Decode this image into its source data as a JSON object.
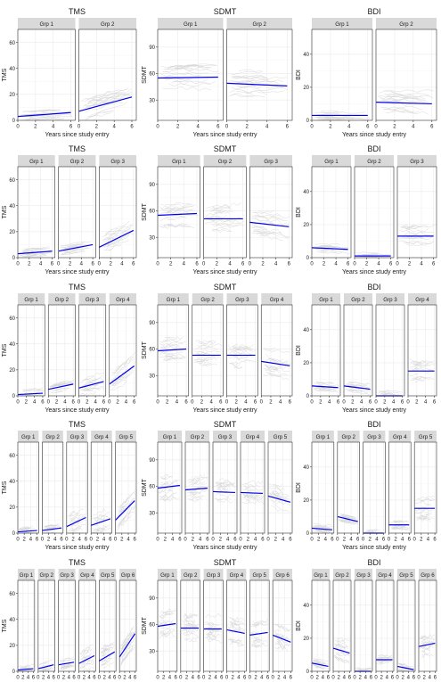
{
  "colors": {
    "strip_bg": "#d9d9d9",
    "trajectory": "#d0d0d0",
    "trend": "#0000ee",
    "grid": "#ebebeb",
    "border": "#333333"
  },
  "chart_data": [
    {
      "type": "line",
      "title": "TMS",
      "xlabel": "Years since study entry",
      "ylabel": "TMS",
      "ylim": [
        0,
        70
      ],
      "yticks": [
        0,
        20,
        40,
        60
      ],
      "xticks": [
        0,
        2,
        4,
        6
      ],
      "xlim": [
        0,
        6.5
      ],
      "grid": true,
      "show_xlabel": true,
      "groups": [
        {
          "name": "Grp 1",
          "trend": [
            [
              0,
              3
            ],
            [
              6,
              6
            ]
          ]
        },
        {
          "name": "Grp 2",
          "trend": [
            [
              0,
              7
            ],
            [
              6,
              18
            ]
          ]
        }
      ]
    },
    {
      "type": "line",
      "title": "SDMT",
      "xlabel": "Years since study entry",
      "ylabel": "SDMT",
      "ylim": [
        7,
        110
      ],
      "yticks": [
        30,
        60,
        90
      ],
      "xticks": [
        0,
        2,
        4,
        6
      ],
      "xlim": [
        0,
        6.5
      ],
      "grid": true,
      "show_xlabel": true,
      "groups": [
        {
          "name": "Grp 1",
          "trend": [
            [
              0,
              55
            ],
            [
              6,
              56
            ]
          ]
        },
        {
          "name": "Grp 2",
          "trend": [
            [
              0,
              49
            ],
            [
              6,
              46
            ]
          ]
        }
      ]
    },
    {
      "type": "line",
      "title": "BDI",
      "xlabel": "Years since study entry",
      "ylabel": "BDI",
      "ylim": [
        0,
        55
      ],
      "yticks": [
        0,
        20,
        40
      ],
      "xticks": [
        0,
        2,
        4,
        6
      ],
      "xlim": [
        0,
        6.5
      ],
      "grid": true,
      "show_xlabel": true,
      "groups": [
        {
          "name": "Grp 1",
          "trend": [
            [
              0,
              3
            ],
            [
              6,
              3
            ]
          ]
        },
        {
          "name": "Grp 2",
          "trend": [
            [
              0,
              11
            ],
            [
              6,
              10
            ]
          ]
        }
      ]
    },
    {
      "type": "line",
      "title": "TMS",
      "xlabel": "Years since study entry",
      "ylabel": "TMS",
      "ylim": [
        0,
        70
      ],
      "yticks": [
        0,
        20,
        40,
        60
      ],
      "xticks": [
        0,
        2,
        4,
        6
      ],
      "xlim": [
        0,
        6.5
      ],
      "grid": true,
      "show_xlabel": true,
      "groups": [
        {
          "name": "Grp 1",
          "trend": [
            [
              0,
              3
            ],
            [
              6,
              5
            ]
          ]
        },
        {
          "name": "Grp 2",
          "trend": [
            [
              0,
              5
            ],
            [
              6,
              10
            ]
          ]
        },
        {
          "name": "Grp 3",
          "trend": [
            [
              0,
              8
            ],
            [
              6,
              21
            ]
          ]
        }
      ]
    },
    {
      "type": "line",
      "title": "SDMT",
      "xlabel": "Years since study entry",
      "ylabel": "SDMT",
      "ylim": [
        7,
        110
      ],
      "yticks": [
        30,
        60,
        90
      ],
      "xticks": [
        0,
        2,
        4,
        6
      ],
      "xlim": [
        0,
        6.5
      ],
      "grid": true,
      "show_xlabel": true,
      "groups": [
        {
          "name": "Grp 1",
          "trend": [
            [
              0,
              55
            ],
            [
              6,
              57
            ]
          ]
        },
        {
          "name": "Grp 2",
          "trend": [
            [
              0,
              51
            ],
            [
              6,
              51
            ]
          ]
        },
        {
          "name": "Grp 3",
          "trend": [
            [
              0,
              47
            ],
            [
              6,
              42
            ]
          ]
        }
      ]
    },
    {
      "type": "line",
      "title": "BDI",
      "xlabel": "Years since study entry",
      "ylabel": "BDI",
      "ylim": [
        0,
        55
      ],
      "yticks": [
        0,
        20,
        40
      ],
      "xticks": [
        0,
        2,
        4,
        6
      ],
      "xlim": [
        0,
        6.5
      ],
      "grid": true,
      "show_xlabel": true,
      "groups": [
        {
          "name": "Grp 1",
          "trend": [
            [
              0,
              6
            ],
            [
              6,
              5
            ]
          ]
        },
        {
          "name": "Grp 2",
          "trend": [
            [
              0,
              1
            ],
            [
              6,
              1
            ]
          ]
        },
        {
          "name": "Grp 3",
          "trend": [
            [
              0,
              13
            ],
            [
              6,
              13
            ]
          ]
        }
      ]
    },
    {
      "type": "line",
      "title": "TMS",
      "xlabel": "Years since study entry",
      "ylabel": "TMS",
      "ylim": [
        0,
        70
      ],
      "yticks": [
        0,
        20,
        40,
        60
      ],
      "xticks": [
        0,
        2,
        4,
        6
      ],
      "xlim": [
        0,
        6.5
      ],
      "grid": true,
      "show_xlabel": true,
      "groups": [
        {
          "name": "Grp 1",
          "trend": [
            [
              0,
              1
            ],
            [
              6,
              2
            ]
          ]
        },
        {
          "name": "Grp 2",
          "trend": [
            [
              0,
              5
            ],
            [
              6,
              9
            ]
          ]
        },
        {
          "name": "Grp 3",
          "trend": [
            [
              0,
              6
            ],
            [
              6,
              11
            ]
          ]
        },
        {
          "name": "Grp 4",
          "trend": [
            [
              0,
              9
            ],
            [
              6,
              23
            ]
          ]
        }
      ]
    },
    {
      "type": "line",
      "title": "SDMT",
      "xlabel": "Years since study entry",
      "ylabel": "SDMT",
      "ylim": [
        7,
        110
      ],
      "yticks": [
        30,
        60,
        90
      ],
      "xticks": [
        0,
        2,
        4,
        6
      ],
      "xlim": [
        0,
        6.5
      ],
      "grid": true,
      "show_xlabel": true,
      "groups": [
        {
          "name": "Grp 1",
          "trend": [
            [
              0,
              58
            ],
            [
              6,
              60
            ]
          ]
        },
        {
          "name": "Grp 2",
          "trend": [
            [
              0,
              53
            ],
            [
              6,
              53
            ]
          ]
        },
        {
          "name": "Grp 3",
          "trend": [
            [
              0,
              53
            ],
            [
              6,
              53
            ]
          ]
        },
        {
          "name": "Grp 4",
          "trend": [
            [
              0,
              46
            ],
            [
              6,
              41
            ]
          ]
        }
      ]
    },
    {
      "type": "line",
      "title": "BDI",
      "xlabel": "Years since study entry",
      "ylabel": "BDI",
      "ylim": [
        0,
        55
      ],
      "yticks": [
        0,
        20,
        40
      ],
      "xticks": [
        0,
        2,
        4,
        6
      ],
      "xlim": [
        0,
        6.5
      ],
      "grid": true,
      "show_xlabel": true,
      "groups": [
        {
          "name": "Grp 1",
          "trend": [
            [
              0,
              6
            ],
            [
              6,
              5
            ]
          ]
        },
        {
          "name": "Grp 2",
          "trend": [
            [
              0,
              6
            ],
            [
              6,
              4
            ]
          ]
        },
        {
          "name": "Grp 3",
          "trend": [
            [
              0,
              0
            ],
            [
              6,
              0
            ]
          ]
        },
        {
          "name": "Grp 4",
          "trend": [
            [
              0,
              15
            ],
            [
              6,
              15
            ]
          ]
        }
      ]
    },
    {
      "type": "line",
      "title": "TMS",
      "xlabel": "Years since study entry",
      "ylabel": "TMS",
      "ylim": [
        0,
        70
      ],
      "yticks": [
        0,
        20,
        40,
        60
      ],
      "xticks": [
        0,
        2,
        4,
        6
      ],
      "xlim": [
        0,
        6.5
      ],
      "grid": true,
      "show_xlabel": true,
      "groups": [
        {
          "name": "Grp 1",
          "trend": [
            [
              0,
              1
            ],
            [
              6,
              2
            ]
          ]
        },
        {
          "name": "Grp 2",
          "trend": [
            [
              0,
              2
            ],
            [
              6,
              4
            ]
          ]
        },
        {
          "name": "Grp 3",
          "trend": [
            [
              0,
              5
            ],
            [
              6,
              12
            ]
          ]
        },
        {
          "name": "Grp 4",
          "trend": [
            [
              0,
              6
            ],
            [
              6,
              11
            ]
          ]
        },
        {
          "name": "Grp 5",
          "trend": [
            [
              0,
              10
            ],
            [
              6,
              25
            ]
          ]
        }
      ]
    },
    {
      "type": "line",
      "title": "SDMT",
      "xlabel": "Years since study entry",
      "ylabel": "SDMT",
      "ylim": [
        7,
        110
      ],
      "yticks": [
        30,
        60,
        90
      ],
      "xticks": [
        0,
        2,
        4,
        6
      ],
      "xlim": [
        0,
        6.5
      ],
      "grid": true,
      "show_xlabel": true,
      "groups": [
        {
          "name": "Grp 1",
          "trend": [
            [
              0,
              58
            ],
            [
              6,
              61
            ]
          ]
        },
        {
          "name": "Grp 2",
          "trend": [
            [
              0,
              56
            ],
            [
              6,
              58
            ]
          ]
        },
        {
          "name": "Grp 3",
          "trend": [
            [
              0,
              54
            ],
            [
              6,
              53
            ]
          ]
        },
        {
          "name": "Grp 4",
          "trend": [
            [
              0,
              53
            ],
            [
              6,
              52
            ]
          ]
        },
        {
          "name": "Grp 5",
          "trend": [
            [
              0,
              49
            ],
            [
              6,
              42
            ]
          ]
        }
      ]
    },
    {
      "type": "line",
      "title": "BDI",
      "xlabel": "Years since study entry",
      "ylabel": "BDI",
      "ylim": [
        0,
        55
      ],
      "yticks": [
        0,
        20,
        40
      ],
      "xticks": [
        0,
        2,
        4,
        6
      ],
      "xlim": [
        0,
        6.5
      ],
      "grid": true,
      "show_xlabel": true,
      "groups": [
        {
          "name": "Grp 1",
          "trend": [
            [
              0,
              3
            ],
            [
              6,
              2
            ]
          ]
        },
        {
          "name": "Grp 2",
          "trend": [
            [
              0,
              10
            ],
            [
              6,
              7
            ]
          ]
        },
        {
          "name": "Grp 3",
          "trend": [
            [
              0,
              0
            ],
            [
              6,
              0
            ]
          ]
        },
        {
          "name": "Grp 4",
          "trend": [
            [
              0,
              5
            ],
            [
              6,
              5
            ]
          ]
        },
        {
          "name": "Grp 5",
          "trend": [
            [
              0,
              15
            ],
            [
              6,
              15
            ]
          ]
        }
      ]
    },
    {
      "type": "line",
      "title": "TMS",
      "xlabel": "Years since study entry",
      "ylabel": "TMS",
      "ylim": [
        0,
        70
      ],
      "yticks": [
        0,
        20,
        40,
        60
      ],
      "xticks": [
        0,
        2,
        4,
        6
      ],
      "xlim": [
        0,
        6.5
      ],
      "grid": true,
      "show_xlabel": true,
      "groups": [
        {
          "name": "Grp 1",
          "trend": [
            [
              0,
              1
            ],
            [
              6,
              2
            ]
          ]
        },
        {
          "name": "Grp 2",
          "trend": [
            [
              0,
              2
            ],
            [
              6,
              5
            ]
          ]
        },
        {
          "name": "Grp 3",
          "trend": [
            [
              0,
              5
            ],
            [
              6,
              7
            ]
          ]
        },
        {
          "name": "Grp 4",
          "trend": [
            [
              0,
              6
            ],
            [
              6,
              12
            ]
          ]
        },
        {
          "name": "Grp 5",
          "trend": [
            [
              0,
              8
            ],
            [
              6,
              15
            ]
          ]
        },
        {
          "name": "Grp 6",
          "trend": [
            [
              0,
              11
            ],
            [
              6,
              29
            ]
          ]
        }
      ]
    },
    {
      "type": "line",
      "title": "SDMT",
      "xlabel": "Years since study entry",
      "ylabel": "SDMT",
      "ylim": [
        7,
        110
      ],
      "yticks": [
        30,
        60,
        90
      ],
      "xticks": [
        0,
        2,
        4,
        6
      ],
      "xlim": [
        0,
        6.5
      ],
      "grid": true,
      "show_xlabel": true,
      "groups": [
        {
          "name": "Grp 1",
          "trend": [
            [
              0,
              58
            ],
            [
              6,
              61
            ]
          ]
        },
        {
          "name": "Grp 2",
          "trend": [
            [
              0,
              56
            ],
            [
              6,
              56
            ]
          ]
        },
        {
          "name": "Grp 3",
          "trend": [
            [
              0,
              55
            ],
            [
              6,
              55
            ]
          ]
        },
        {
          "name": "Grp 4",
          "trend": [
            [
              0,
              54
            ],
            [
              6,
              50
            ]
          ]
        },
        {
          "name": "Grp 5",
          "trend": [
            [
              0,
              48
            ],
            [
              6,
              51
            ]
          ]
        },
        {
          "name": "Grp 6",
          "trend": [
            [
              0,
              48
            ],
            [
              6,
              40
            ]
          ]
        }
      ]
    },
    {
      "type": "line",
      "title": "BDI",
      "xlabel": "Years since study entry",
      "ylabel": "BDI",
      "ylim": [
        0,
        55
      ],
      "yticks": [
        0,
        20,
        40
      ],
      "xticks": [
        0,
        2,
        4,
        6
      ],
      "xlim": [
        0,
        6.5
      ],
      "grid": true,
      "show_xlabel": false,
      "groups": [
        {
          "name": "Grp 1",
          "trend": [
            [
              0,
              5
            ],
            [
              6,
              3
            ]
          ]
        },
        {
          "name": "Grp 2",
          "trend": [
            [
              0,
              14
            ],
            [
              6,
              11
            ]
          ]
        },
        {
          "name": "Grp 3",
          "trend": [
            [
              0,
              0
            ],
            [
              6,
              0
            ]
          ]
        },
        {
          "name": "Grp 4",
          "trend": [
            [
              0,
              7
            ],
            [
              6,
              7
            ]
          ]
        },
        {
          "name": "Grp 5",
          "trend": [
            [
              0,
              3
            ],
            [
              6,
              1
            ]
          ]
        },
        {
          "name": "Grp 6",
          "trend": [
            [
              0,
              15
            ],
            [
              6,
              17
            ]
          ]
        }
      ]
    }
  ]
}
